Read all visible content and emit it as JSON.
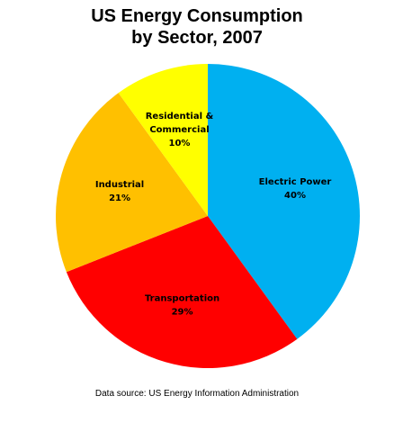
{
  "chart_data": {
    "type": "pie",
    "title_lines": [
      "US Energy Consumption",
      "by Sector, 2007"
    ],
    "slices": [
      {
        "label_lines": [
          "Electric Power",
          "40%"
        ],
        "value": 40,
        "color": "#00b0f0"
      },
      {
        "label_lines": [
          "Transportation",
          "29%"
        ],
        "value": 29,
        "color": "#ff0000"
      },
      {
        "label_lines": [
          "Industrial",
          "21%"
        ],
        "value": 21,
        "color": "#ffc000"
      },
      {
        "label_lines": [
          "Residential &",
          "Commercial",
          "10%"
        ],
        "value": 10,
        "color": "#ffff00"
      }
    ],
    "start_angle_deg": 0,
    "direction": "clockwise",
    "legend": "none"
  },
  "source_note": "Data source: US Energy Information Administration"
}
